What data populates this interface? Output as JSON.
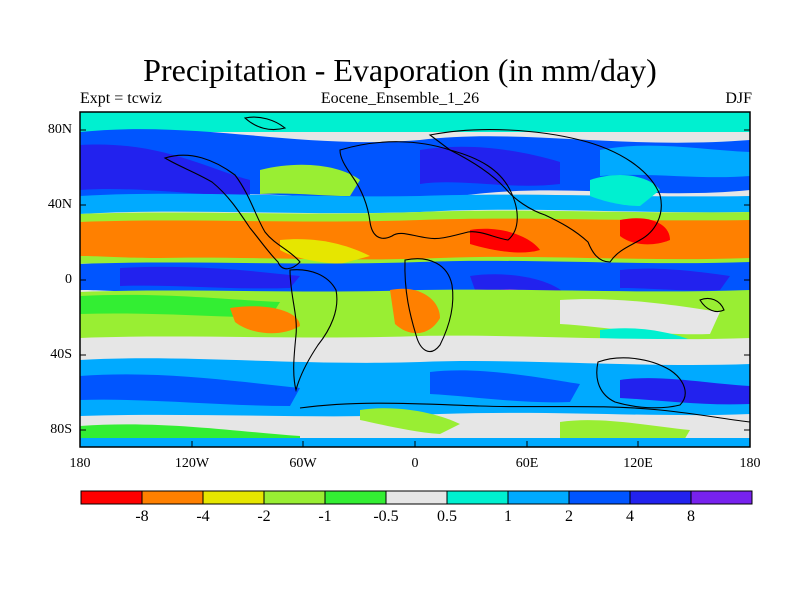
{
  "title": "Precipitation - Evaporation (in mm/day)",
  "subtitle_left": "Expt = tcwiz",
  "subtitle_center": "Eocene_Ensemble_1_26",
  "subtitle_right": "DJF",
  "lat_ticks": [
    "80N",
    "40N",
    "0",
    "40S",
    "80S"
  ],
  "lon_ticks": [
    "180",
    "120W",
    "60W",
    "0",
    "60E",
    "120E",
    "180"
  ],
  "colorbar": {
    "labels": [
      "-8",
      "-4",
      "-2",
      "-1",
      "-0.5",
      "0.5",
      "1",
      "2",
      "4",
      "8"
    ],
    "colors": [
      "#ff0000",
      "#ff8000",
      "#e6e600",
      "#99ee33",
      "#33ee33",
      "#e6e6e6",
      "#00f0d0",
      "#00aaff",
      "#0055ff",
      "#2222ee",
      "#7722ee"
    ]
  }
}
